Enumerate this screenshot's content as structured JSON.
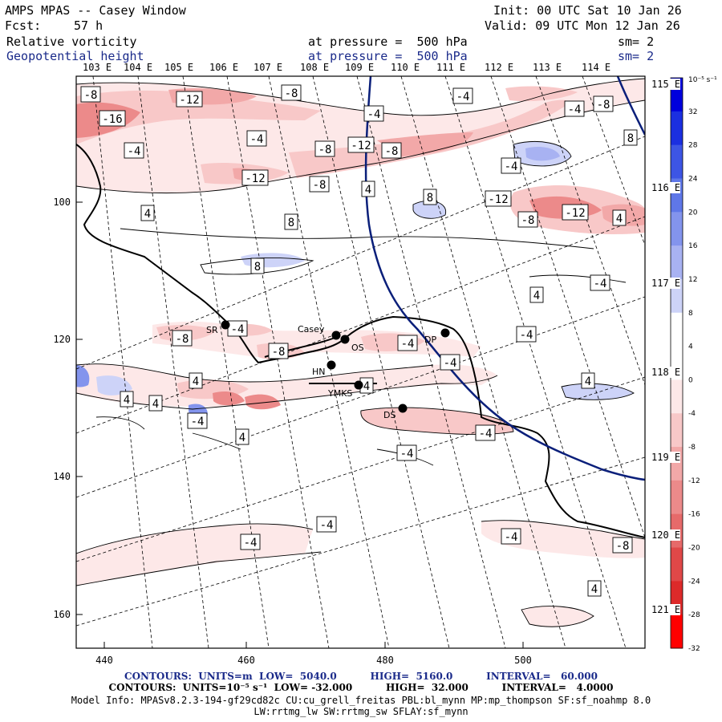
{
  "header": {
    "title": "AMPS MPAS -- Casey Window",
    "init_label": "Init: 00 UTC Sat 10 Jan 26",
    "fcst_label": "Fcst:",
    "fcst_hours": "57 h",
    "valid_label": "Valid: 09 UTC Mon 12 Jan 26",
    "field1_name": "Relative vorticity",
    "field1_level": "at pressure =  500 hPa",
    "field1_sm": "sm= 2",
    "field2_name": "Geopotential height",
    "field2_level": "at pressure =  500 hPa",
    "field2_sm": "sm= 2"
  },
  "axes": {
    "x_ticks": [
      "440",
      "460",
      "480",
      "500"
    ],
    "y_ticks": [
      "100",
      "120",
      "140",
      "160"
    ],
    "lon_top": [
      "103 E",
      "104 E",
      "105 E",
      "106 E",
      "107 E",
      "108 E",
      "109 E",
      "110 E",
      "111 E",
      "112 E",
      "113 E",
      "114 E"
    ],
    "lat_right": [
      "115 E",
      "116 E",
      "117 E",
      "118 E",
      "119 E",
      "120 E",
      "121 E"
    ]
  },
  "colorbar": {
    "unit": "10⁻⁵ s⁻¹",
    "labels": [
      "32",
      "28",
      "24",
      "20",
      "16",
      "12",
      "8",
      "4",
      "0",
      "-4",
      "-8",
      "-12",
      "-16",
      "-20",
      "-24",
      "-28",
      "-32"
    ],
    "colors": [
      "#0000dd",
      "#1b2fe0",
      "#3d55e4",
      "#5f77e8",
      "#8394ed",
      "#a8b2f2",
      "#cdd3f8",
      "#ffffff",
      "#ffffff",
      "#fde8e8",
      "#f8c8c8",
      "#f2a8a8",
      "#ec8a8a",
      "#e66a6a",
      "#e04848",
      "#dd2a2a",
      "#ff0000"
    ]
  },
  "stations": [
    "SR",
    "Casey",
    "OS",
    "HN",
    "YMKS",
    "DP",
    "DS"
  ],
  "contour_labels": [
    "-8",
    "-12",
    "-16",
    "-4",
    "-8",
    "-4",
    "-4",
    "-4",
    "-8",
    "-4",
    "-8",
    "-12",
    "-8",
    "8",
    "-4",
    "-12",
    "-8",
    "4",
    "8",
    "-12",
    "-8",
    "-12",
    "4",
    "4",
    "8",
    "8",
    "-4",
    "4",
    "-8",
    "-4",
    "-8",
    "-4",
    "-4",
    "4",
    "-4",
    "4",
    "4",
    "4",
    "4",
    "-4",
    "4",
    "-4",
    "-4",
    "-4",
    "-4",
    "-4",
    "-8",
    "4"
  ],
  "footer": {
    "line1": "CONTOURS:  UNITS=m  LOW=  5040.0          HIGH=  5160.0          INTERVAL=   60.000",
    "line2": "CONTOURS:  UNITS=10⁻⁵ s⁻¹  LOW= -32.000          HIGH=  32.000          INTERVAL=   4.0000",
    "line3": "Model Info: MPASv8.2.3-194-gf29cd82c CU:cu_grell_freitas PBL:bl_mynn MP:mp_thompson SF:sf_noahmp 8.0",
    "line4": "LW:rrtmg_lw SW:rrtmg_sw SFLAY:sf_mynn"
  }
}
